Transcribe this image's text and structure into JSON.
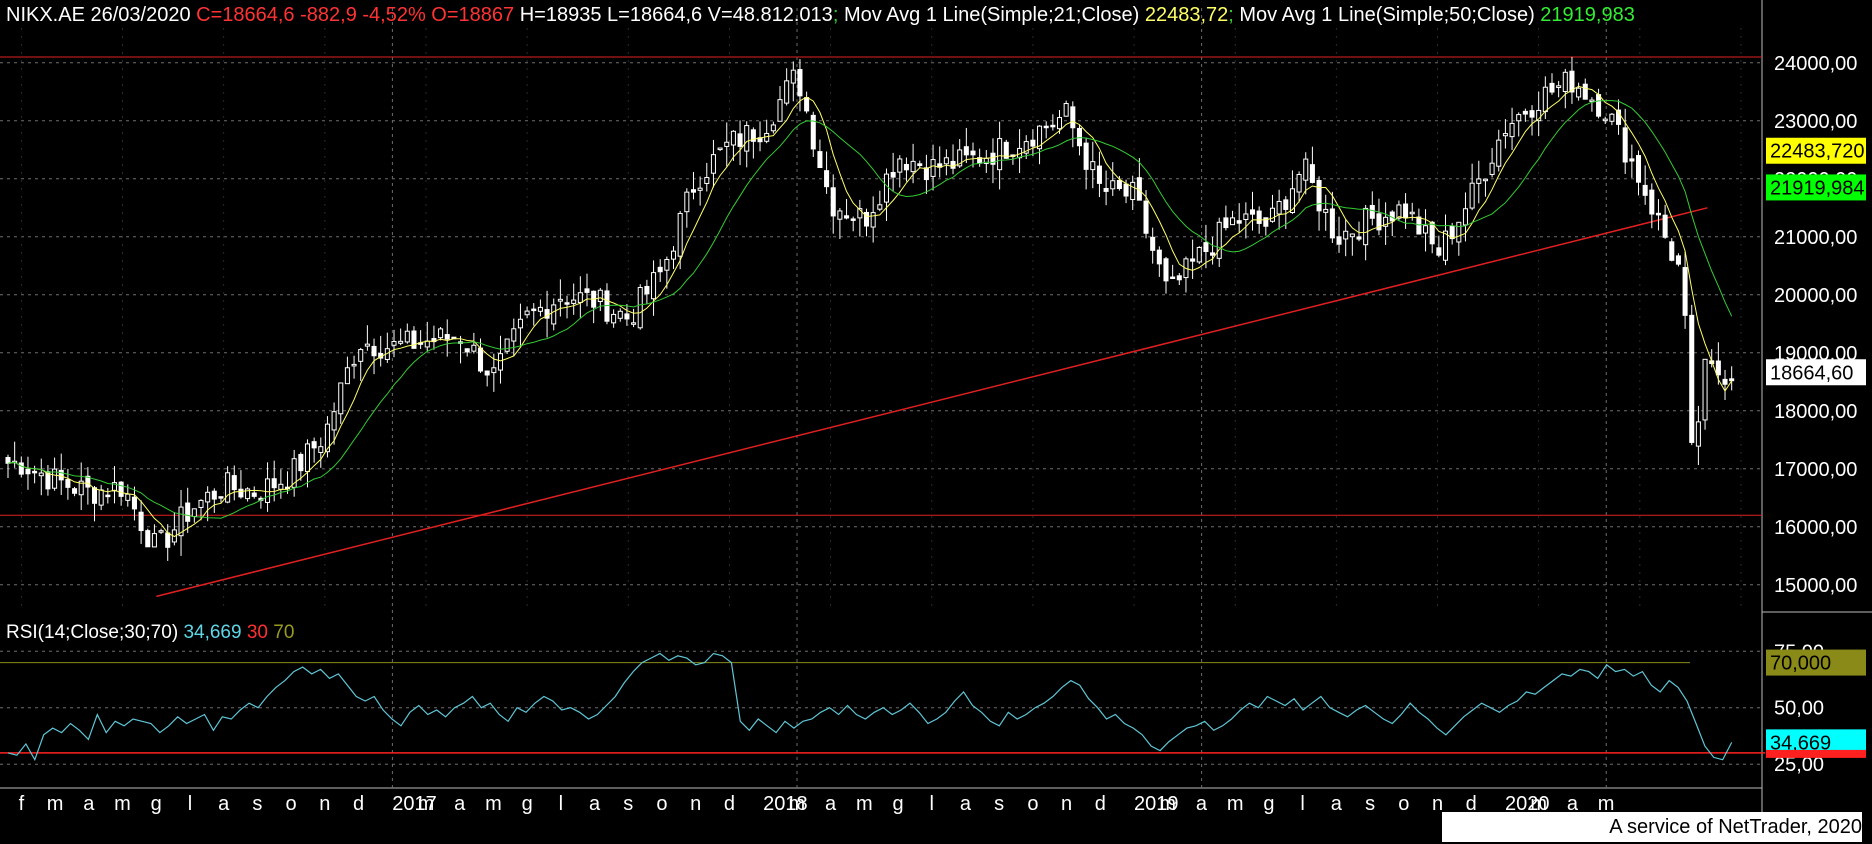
{
  "header": {
    "symbol_date": "NIKX.AE 26/03/2020",
    "ohlc": "C=18664,6 -882,9 -4,52% O=18867",
    "hlv": "H=18935 L=18664,6 V=48.812.013",
    "sep1": ";",
    "ma21_label": "Mov Avg 1 Line(Simple;21;Close)",
    "ma21_value": "22483,72",
    "sep2": ";",
    "ma50_label": "Mov Avg 1 Line(Simple;50;Close)",
    "ma50_value": "21919,983"
  },
  "rsi_header": {
    "label": "RSI(14;Close;30;70)",
    "value": "34,669",
    "low": "30",
    "high": "70"
  },
  "footer": {
    "text": "A service of NetTrader, 2020"
  },
  "colors": {
    "price": "#ffffff",
    "ma21": "#ffff66",
    "ma50": "#33cc33",
    "trendline": "#e02020",
    "rsi": "#5fc6d6",
    "rsi_low": "#ff2020",
    "rsi_high": "#8a8a18",
    "grid": "#6e6e6e"
  },
  "chart_data": [
    {
      "type": "candlestick",
      "title": "NIKX.AE",
      "y_ticks": [
        "15000,00",
        "16000,00",
        "17000,00",
        "18000,00",
        "19000,00",
        "20000,00",
        "21000,00",
        "22000,00",
        "23000,00",
        "24000,00"
      ],
      "ylim": [
        14600,
        24600
      ],
      "x_tick_labels": [
        "f",
        "m",
        "a",
        "m",
        "g",
        "l",
        "a",
        "s",
        "o",
        "n",
        "d",
        "2017",
        "m",
        "a",
        "m",
        "g",
        "l",
        "a",
        "s",
        "o",
        "n",
        "d",
        "2018",
        "m",
        "a",
        "m",
        "g",
        "l",
        "a",
        "s",
        "o",
        "n",
        "d",
        "2019",
        "m",
        "a",
        "m",
        "g",
        "l",
        "a",
        "s",
        "o",
        "n",
        "d",
        "2020",
        "m",
        "a",
        "m"
      ],
      "price_close_path": [
        [
          "2016-02",
          17100
        ],
        [
          "2016-03",
          16800
        ],
        [
          "2016-04",
          16600
        ],
        [
          "2016-05",
          16700
        ],
        [
          "2016-06",
          15600
        ],
        [
          "2016-07",
          16300
        ],
        [
          "2016-08",
          16700
        ],
        [
          "2016-09",
          16600
        ],
        [
          "2016-10",
          16900
        ],
        [
          "2016-11",
          17600
        ],
        [
          "2016-12",
          19200
        ],
        [
          "2017-01",
          19100
        ],
        [
          "2017-02",
          19200
        ],
        [
          "2017-03",
          19300
        ],
        [
          "2017-04",
          18600
        ],
        [
          "2017-05",
          19600
        ],
        [
          "2017-06",
          20000
        ],
        [
          "2017-07",
          19900
        ],
        [
          "2017-08",
          19600
        ],
        [
          "2017-09",
          20400
        ],
        [
          "2017-10",
          22000
        ],
        [
          "2017-11",
          22600
        ],
        [
          "2017-12",
          22900
        ],
        [
          "2018-01",
          23800
        ],
        [
          "2018-02",
          21600
        ],
        [
          "2018-03",
          21300
        ],
        [
          "2018-04",
          22400
        ],
        [
          "2018-05",
          22200
        ],
        [
          "2018-06",
          22300
        ],
        [
          "2018-07",
          22500
        ],
        [
          "2018-08",
          22800
        ],
        [
          "2018-09",
          23100
        ],
        [
          "2018-10",
          21800
        ],
        [
          "2018-11",
          21700
        ],
        [
          "2018-12",
          20000
        ],
        [
          "2019-01",
          20700
        ],
        [
          "2019-02",
          21300
        ],
        [
          "2019-03",
          21200
        ],
        [
          "2019-04",
          22200
        ],
        [
          "2019-05",
          21000
        ],
        [
          "2019-06",
          21300
        ],
        [
          "2019-07",
          21500
        ],
        [
          "2019-08",
          20700
        ],
        [
          "2019-09",
          21700
        ],
        [
          "2019-10",
          22900
        ],
        [
          "2019-11",
          23400
        ],
        [
          "2019-12",
          23700
        ],
        [
          "2020-01",
          23200
        ],
        [
          "2020-02",
          22000
        ],
        [
          "2020-03-09",
          20300
        ],
        [
          "2020-03-19",
          16600
        ],
        [
          "2020-03-26",
          18664.6
        ]
      ],
      "series": [
        {
          "name": "Mov Avg 1 Line(Simple;21;Close)",
          "last": 22483.72
        },
        {
          "name": "Mov Avg 1 Line(Simple;50;Close)",
          "last": 21919.983
        }
      ],
      "horizontal_lines": [
        24100,
        16200
      ],
      "trendline": {
        "from": [
          "2016-06",
          14800
        ],
        "to": [
          "2020-04",
          21500
        ]
      },
      "price_labels": [
        {
          "value": "22483,720",
          "color": "#ffff00",
          "text_color": "#000000"
        },
        {
          "value": "21919,984",
          "color": "#00ff00",
          "text_color": "#000000"
        },
        {
          "value": "18664,60",
          "color": "#ffffff",
          "text_color": "#000000"
        }
      ]
    },
    {
      "type": "line",
      "title": "RSI(14;Close;30;70)",
      "y_ticks": [
        "25,00",
        "50,00",
        "75,00"
      ],
      "ylim": [
        18,
        80
      ],
      "levels": {
        "low": 30,
        "high": 70
      },
      "values": [
        30,
        29,
        34,
        27,
        38,
        41,
        39,
        43,
        40,
        36,
        47,
        39,
        44,
        42,
        45,
        44,
        43,
        39,
        42,
        46,
        43,
        45,
        47,
        40,
        46,
        45,
        49,
        52,
        50,
        55,
        59,
        62,
        66,
        68,
        65,
        67,
        63,
        65,
        60,
        55,
        53,
        55,
        49,
        45,
        42,
        48,
        51,
        47,
        49,
        46,
        50,
        52,
        55,
        50,
        52,
        47,
        44,
        50,
        48,
        52,
        55,
        53,
        49,
        50,
        48,
        45,
        47,
        51,
        55,
        61,
        66,
        70,
        72,
        74,
        71,
        73,
        72,
        69,
        70,
        74,
        73,
        70,
        44,
        40,
        45,
        42,
        39,
        44,
        41,
        44,
        45,
        48,
        50,
        47,
        51,
        47,
        45,
        48,
        50,
        47,
        49,
        52,
        48,
        43,
        45,
        48,
        53,
        57,
        51,
        48,
        44,
        42,
        48,
        45,
        47,
        50,
        52,
        55,
        59,
        62,
        60,
        54,
        50,
        45,
        47,
        43,
        41,
        38,
        33,
        31,
        35,
        38,
        41,
        42,
        44,
        40,
        42,
        45,
        49,
        52,
        50,
        55,
        53,
        51,
        54,
        49,
        52,
        55,
        50,
        48,
        46,
        49,
        51,
        48,
        45,
        43,
        47,
        52,
        48,
        45,
        41,
        38,
        42,
        46,
        49,
        52,
        50,
        48,
        51,
        53,
        57,
        56,
        59,
        62,
        65,
        64,
        67,
        66,
        63,
        69,
        66,
        67,
        64,
        66,
        60,
        57,
        62,
        59,
        53,
        43,
        33,
        28,
        27,
        34.669
      ],
      "label_boxes": [
        {
          "value": "70,000",
          "color": "#8a8a18",
          "text_color": "#000000"
        },
        {
          "value": "34,669",
          "color": "#00ffff",
          "text_color": "#000000"
        }
      ]
    }
  ]
}
